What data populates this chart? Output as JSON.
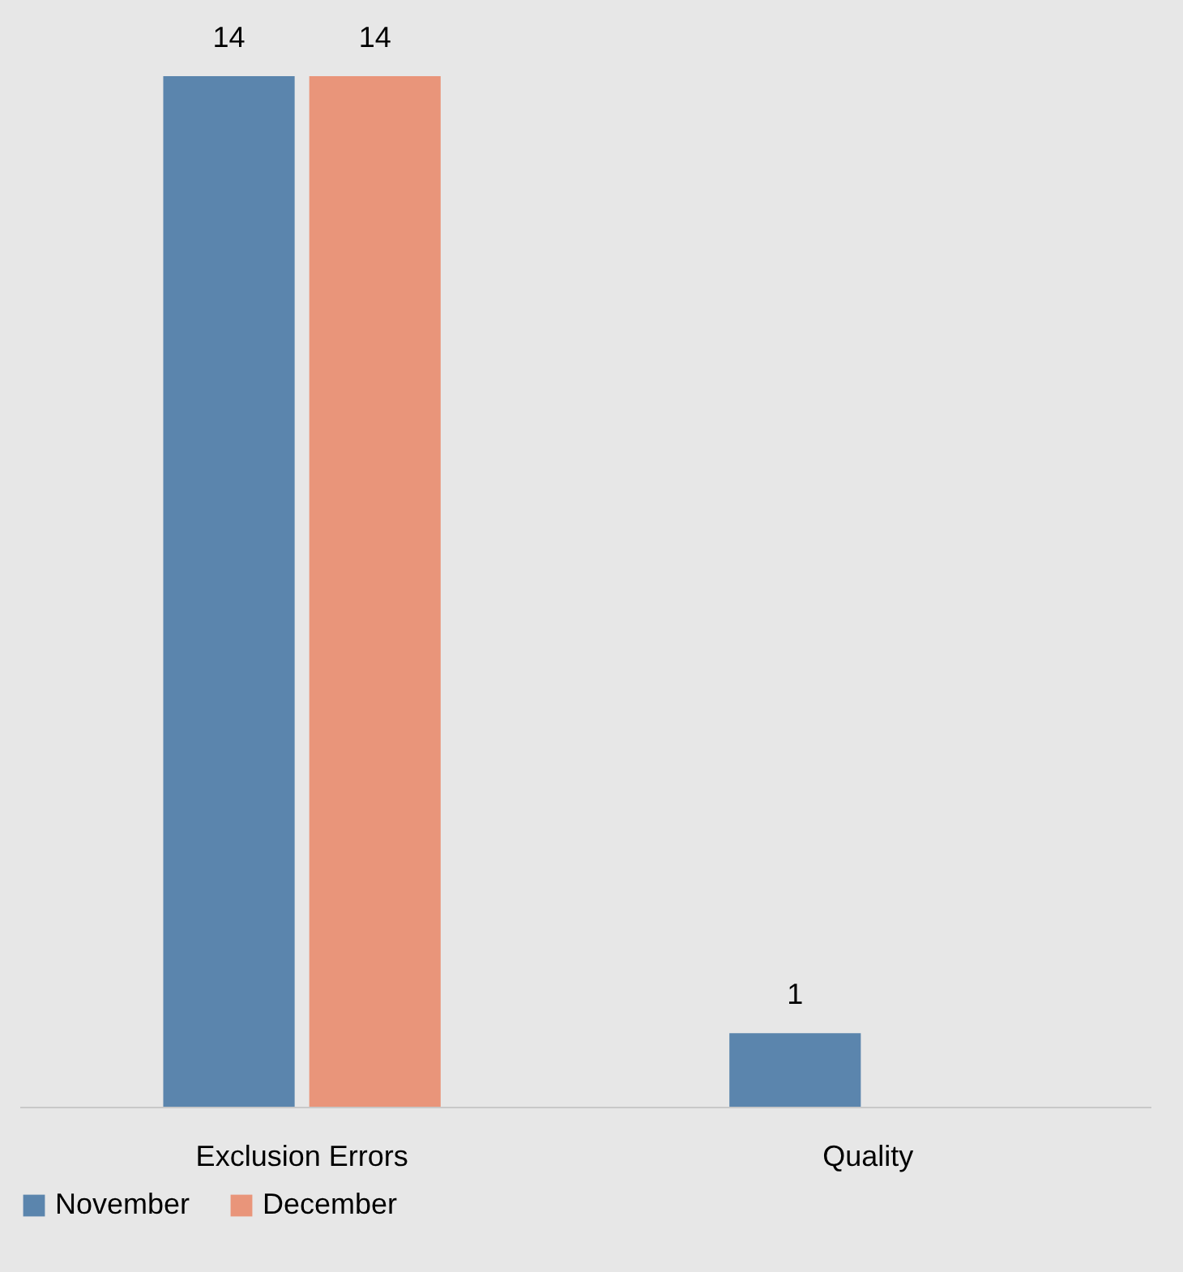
{
  "chart_data": {
    "type": "bar",
    "categories": [
      "Exclusion Errors",
      "Quality"
    ],
    "series": [
      {
        "name": "November",
        "color": "#5b85ad",
        "values": [
          14,
          1
        ]
      },
      {
        "name": "December",
        "color": "#e9957a",
        "values": [
          14,
          null
        ]
      }
    ],
    "data_labels": true,
    "legend": "bottom",
    "grid": false
  }
}
